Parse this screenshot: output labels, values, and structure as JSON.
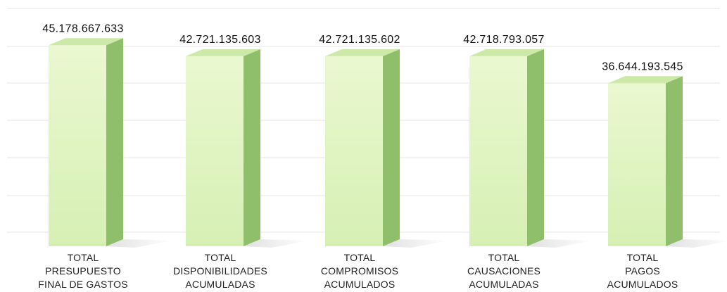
{
  "chart_data": {
    "type": "bar",
    "style": "3d-column",
    "grid": true,
    "legend": "none",
    "ylim": [
      0,
      50000000000
    ],
    "categories": [
      [
        "TOTAL",
        "PRESUPUESTO",
        "FINAL DE GASTOS"
      ],
      [
        "TOTAL",
        "DISPONIBILIDADES",
        "ACUMULADAS"
      ],
      [
        "TOTAL",
        "COMPROMISOS",
        "ACUMULADOS"
      ],
      [
        "TOTAL",
        "CAUSACIONES",
        "ACUMULADAS"
      ],
      [
        "TOTAL",
        "PAGOS",
        "ACUMULADOS"
      ]
    ],
    "values": [
      45178667633,
      42721135603,
      42721135602,
      42718793057,
      36644193545
    ],
    "value_labels": [
      "45.178.667.633",
      "42.721.135.603",
      "42.721.135.602",
      "42.718.793.057",
      "36.644.193.545"
    ],
    "colors": {
      "front_top": "#eaf8d0",
      "front_bottom": "#d6f0b4",
      "side": "#8fbf6a",
      "top": "#cde9a8",
      "grid": "#e4e4e4"
    }
  }
}
